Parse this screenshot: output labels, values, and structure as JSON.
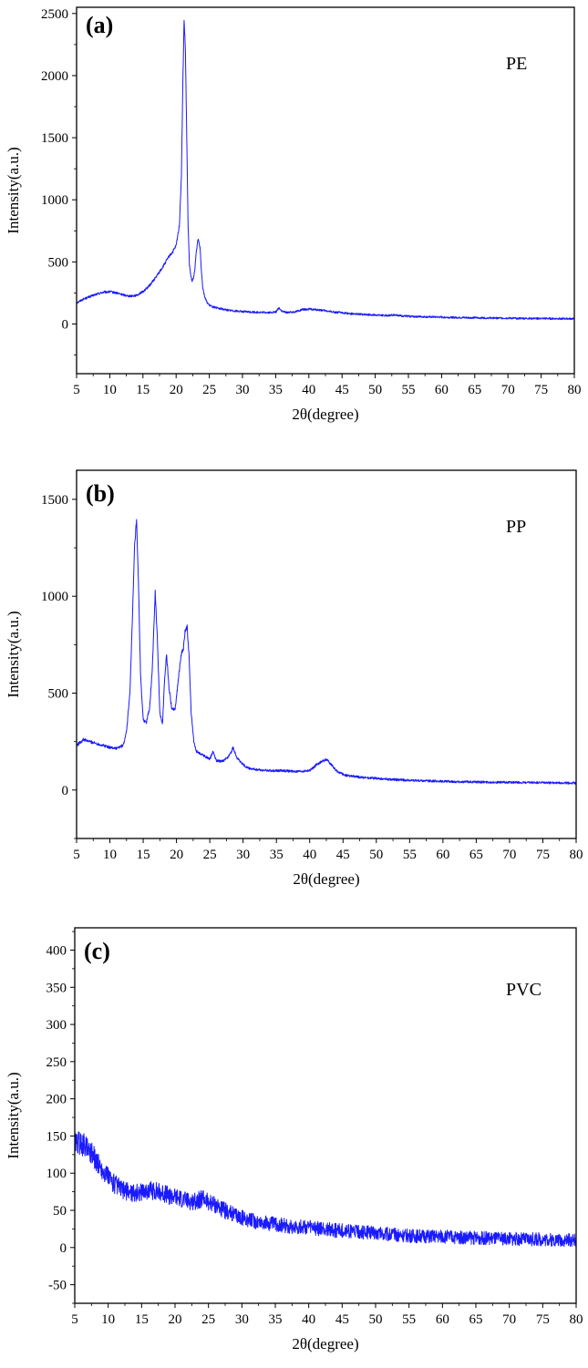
{
  "chart_data": [
    {
      "type": "line",
      "panel_label": "(a)",
      "sample_label": "PE",
      "xlabel": "2θ(degree)",
      "ylabel": "Intensity(a.u.)",
      "xlim": [
        5,
        80
      ],
      "ylim": [
        -400,
        2550
      ],
      "xticks": [
        5,
        10,
        15,
        20,
        25,
        30,
        35,
        40,
        45,
        50,
        55,
        60,
        65,
        70,
        75,
        80
      ],
      "yticks": [
        0,
        500,
        1000,
        1500,
        2000,
        2500
      ],
      "series": [
        {
          "color": "#1a1aff",
          "noise": 12,
          "x": [
            5,
            6,
            7,
            8,
            9,
            10,
            11,
            12,
            13,
            14,
            15,
            16,
            17,
            18,
            19,
            19.5,
            20,
            20.5,
            20.8,
            21.0,
            21.2,
            21.4,
            21.6,
            21.8,
            22.0,
            22.2,
            22.4,
            22.6,
            22.8,
            23.0,
            23.3,
            23.6,
            23.8,
            24.0,
            24.3,
            24.6,
            25,
            26,
            27,
            28,
            29,
            30,
            31,
            32,
            33,
            34,
            35,
            35.5,
            36,
            36.5,
            37,
            38,
            39,
            40,
            41,
            42,
            43,
            44,
            45,
            46,
            47,
            48,
            50,
            52,
            53,
            54,
            56,
            58,
            60,
            62,
            65,
            68,
            70,
            72,
            75,
            78,
            80
          ],
          "y": [
            170,
            200,
            220,
            240,
            255,
            260,
            250,
            235,
            225,
            230,
            260,
            310,
            380,
            460,
            550,
            580,
            630,
            800,
            1200,
            1900,
            2450,
            2200,
            1500,
            800,
            480,
            390,
            350,
            360,
            430,
            560,
            690,
            620,
            440,
            300,
            220,
            180,
            150,
            130,
            120,
            110,
            105,
            100,
            97,
            95,
            93,
            92,
            95,
            130,
            100,
            95,
            93,
            100,
            115,
            120,
            115,
            110,
            102,
            95,
            90,
            85,
            80,
            78,
            72,
            68,
            75,
            65,
            60,
            57,
            55,
            52,
            50,
            48,
            47,
            45,
            44,
            43,
            42
          ]
        }
      ]
    },
    {
      "type": "line",
      "panel_label": "(b)",
      "sample_label": "PP",
      "xlabel": "2θ(degree)",
      "ylabel": "Intensity(a.u.)",
      "xlim": [
        5,
        80
      ],
      "ylim": [
        -250,
        1650
      ],
      "xticks": [
        5,
        10,
        15,
        20,
        25,
        30,
        35,
        40,
        45,
        50,
        55,
        60,
        65,
        70,
        75,
        80
      ],
      "yticks": [
        0,
        500,
        1000,
        1500
      ],
      "series": [
        {
          "color": "#1a1aff",
          "noise": 9,
          "x": [
            5,
            6,
            7,
            8,
            9,
            10,
            11,
            12,
            12.5,
            13.0,
            13.4,
            13.7,
            14.0,
            14.3,
            14.6,
            15.0,
            15.5,
            16.0,
            16.4,
            16.8,
            17.1,
            17.5,
            17.9,
            18.2,
            18.5,
            18.9,
            19.3,
            19.8,
            20.3,
            20.7,
            21.0,
            21.3,
            21.6,
            21.9,
            22.2,
            22.6,
            23.0,
            24,
            25,
            25.5,
            26,
            27,
            28,
            28.5,
            29,
            30,
            31,
            32,
            34,
            36,
            38,
            40,
            41,
            42,
            42.5,
            43,
            44,
            45,
            46,
            48,
            50,
            52,
            55,
            58,
            60,
            62,
            65,
            68,
            70,
            72,
            75,
            78,
            80
          ],
          "y": [
            230,
            260,
            250,
            240,
            230,
            220,
            215,
            230,
            300,
            500,
            900,
            1250,
            1390,
            1050,
            600,
            360,
            350,
            430,
            650,
            1020,
            800,
            400,
            340,
            560,
            700,
            520,
            420,
            420,
            580,
            700,
            720,
            820,
            840,
            680,
            400,
            250,
            200,
            180,
            160,
            200,
            150,
            150,
            180,
            220,
            170,
            130,
            110,
            105,
            100,
            100,
            95,
            100,
            130,
            150,
            160,
            140,
            100,
            80,
            72,
            65,
            60,
            55,
            50,
            47,
            45,
            43,
            42,
            40,
            40,
            38,
            38,
            37,
            36
          ]
        }
      ]
    },
    {
      "type": "line",
      "panel_label": "(c)",
      "sample_label": "PVC",
      "xlabel": "2θ(degree)",
      "ylabel": "Intensity(a.u.)",
      "xlim": [
        5,
        80
      ],
      "ylim": [
        -75,
        430
      ],
      "xticks": [
        5,
        10,
        15,
        20,
        25,
        30,
        35,
        40,
        45,
        50,
        55,
        60,
        65,
        70,
        75,
        80
      ],
      "yticks": [
        -50,
        0,
        50,
        100,
        150,
        200,
        250,
        300,
        350,
        400
      ],
      "series": [
        {
          "color": "#1a1aff",
          "noise": 14,
          "x": [
            5,
            6,
            7,
            8,
            9,
            10,
            11,
            12,
            13,
            14,
            15,
            16,
            17,
            18,
            19,
            20,
            21,
            22,
            23,
            24,
            25,
            26,
            27,
            28,
            29,
            30,
            32,
            34,
            36,
            38,
            40,
            42,
            44,
            46,
            48,
            50,
            52,
            55,
            58,
            60,
            62,
            65,
            68,
            70,
            72,
            75,
            78,
            80
          ],
          "y": [
            140,
            140,
            135,
            120,
            105,
            95,
            85,
            78,
            75,
            73,
            75,
            77,
            76,
            74,
            70,
            68,
            65,
            62,
            62,
            66,
            62,
            57,
            52,
            47,
            43,
            40,
            35,
            32,
            30,
            28,
            27,
            25,
            23,
            22,
            20,
            20,
            18,
            16,
            15,
            15,
            14,
            13,
            12,
            12,
            11,
            11,
            10,
            10
          ]
        }
      ]
    }
  ]
}
